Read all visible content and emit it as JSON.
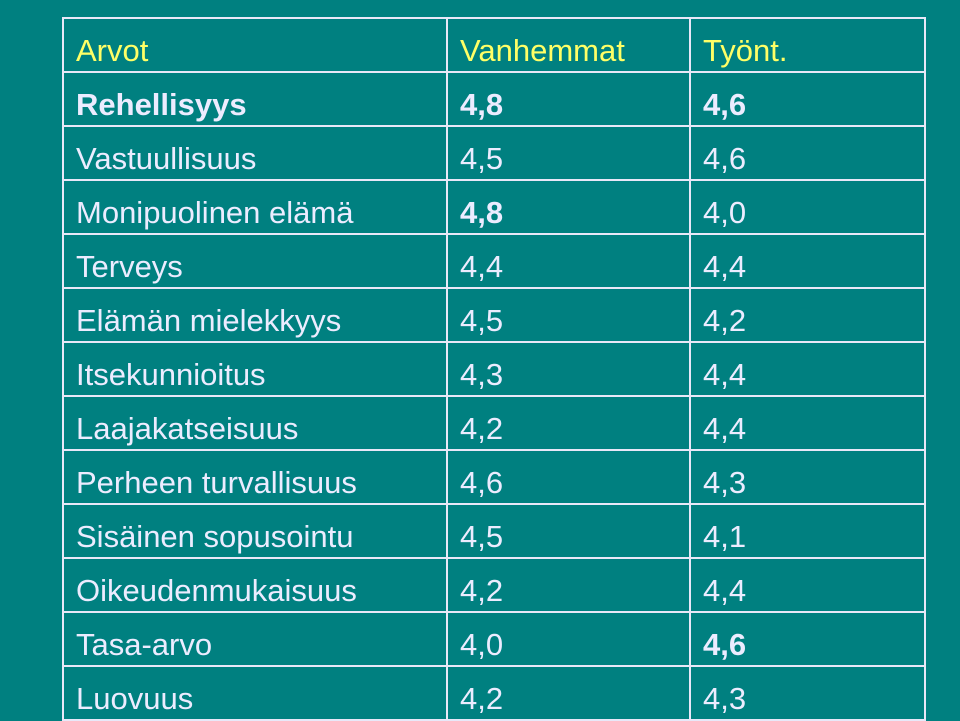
{
  "table": {
    "header": [
      "Arvot",
      "Vanhemmat",
      "Työnt."
    ],
    "rows": [
      [
        "Rehellisyys",
        "4,8",
        "4,6"
      ],
      [
        "Vastuullisuus",
        "4,5",
        "4,6"
      ],
      [
        "Monipuolinen elämä",
        "4,8",
        "4,0"
      ],
      [
        "Terveys",
        "4,4",
        "4,4"
      ],
      [
        "Elämän mielekkyys",
        "4,5",
        "4,2"
      ],
      [
        "Itsekunnioitus",
        "4,3",
        "4,4"
      ],
      [
        "Laajakatseisuus",
        "4,2",
        "4,4"
      ],
      [
        "Perheen turvallisuus",
        "4,6",
        "4,3"
      ],
      [
        "Sisäinen sopusointu",
        "4,5",
        "4,1"
      ],
      [
        "Oikeudenmukaisuus",
        "4,2",
        "4,4"
      ],
      [
        "Tasa-arvo",
        "4,0",
        "4,6"
      ],
      [
        "Luovuus",
        "4,2",
        "4,3"
      ]
    ]
  }
}
